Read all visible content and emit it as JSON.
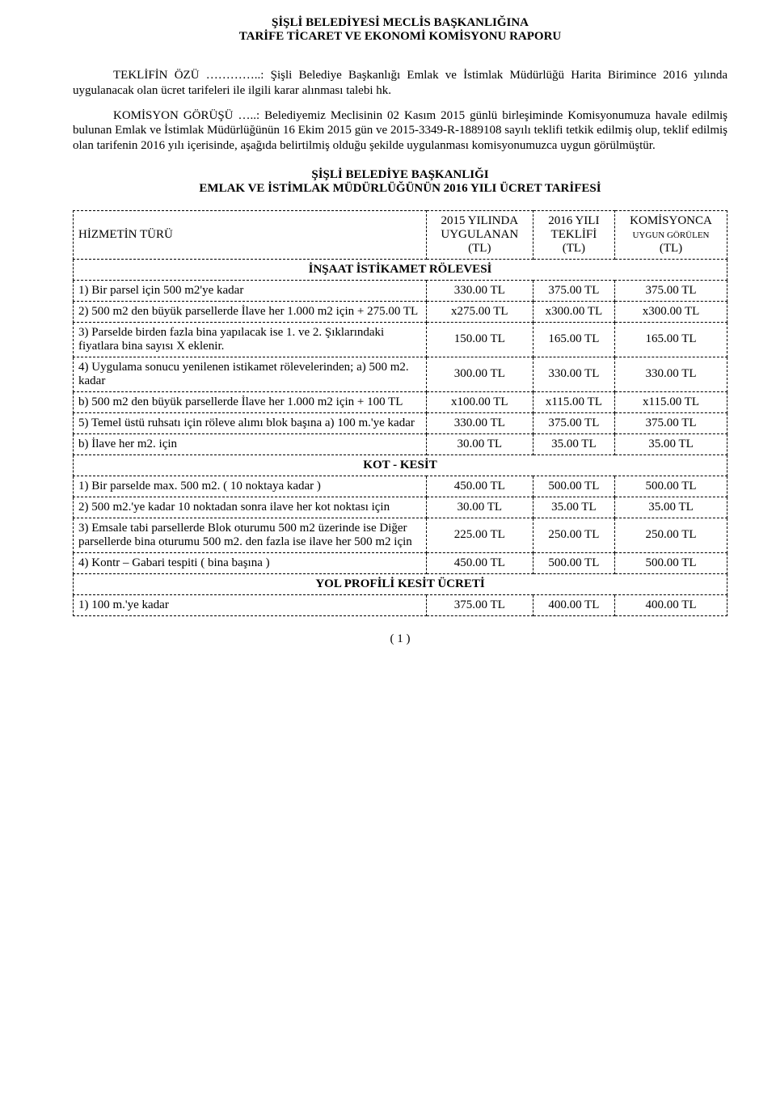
{
  "header": {
    "line1": "ŞİŞLİ BELEDİYESİ MECLİS BAŞKANLIĞINA",
    "line2": "TARİFE TİCARET VE EKONOMİ KOMİSYONU RAPORU"
  },
  "intro": {
    "teklif_label": "TEKLİFİN ÖZÜ …………..: ",
    "teklif_text": "Şişli Belediye Başkanlığı Emlak ve İstimlak Müdürlüğü Harita Birimince 2016 yılında uygulanacak olan ücret tarifeleri ile ilgili karar alınması talebi hk.",
    "komisyon_label": "KOMİSYON GÖRÜŞÜ …..: ",
    "komisyon_text": "Belediyemiz Meclisinin 02 Kasım 2015 günlü birleşiminde Komisyonumuza havale edilmiş bulunan Emlak ve İstimlak Müdürlüğünün 16 Ekim 2015 gün ve 2015-3349-R-1889108 sayılı teklifi tetkik edilmiş olup, teklif edilmiş olan tarifenin 2016 yılı içerisinde, aşağıda belirtilmiş olduğu şekilde uygulanması komisyonumuzca uygun görülmüştür."
  },
  "subheader": {
    "line1": "ŞİŞLİ BELEDİYE BAŞKANLIĞI",
    "line2": "EMLAK VE İSTİMLAK MÜDÜRLÜĞÜNÜN 2016 YILI ÜCRET TARİFESİ"
  },
  "columns": {
    "service": "HİZMETİN TÜRÜ",
    "c2015_a": "2015 YILINDA",
    "c2015_b": "UYGULANAN",
    "c2015_c": "(TL)",
    "c2016_a": "2016 YILI",
    "c2016_b": "TEKLİFİ",
    "c2016_c": "(TL)",
    "ckom_a": "KOMİSYONCA",
    "ckom_b": "UYGUN GÖRÜLEN",
    "ckom_c": "(TL)"
  },
  "sections": {
    "s1": "İNŞAAT İSTİKAMET RÖLEVESİ",
    "s2": "KOT   -   KESİT",
    "s3": "YOL PROFİLİ KESİT ÜCRETİ"
  },
  "rows": {
    "r1": {
      "desc": "1) Bir parsel için 500 m2'ye kadar",
      "a": "330.00 TL",
      "b": "375.00 TL",
      "c": "375.00 TL"
    },
    "r2": {
      "desc": "2) 500 m2 den büyük parsellerde İlave her 1.000 m2 için + 275.00 TL",
      "a": "x275.00 TL",
      "b": "x300.00 TL",
      "c": "x300.00 TL"
    },
    "r3": {
      "desc": "3) Parselde birden fazla bina yapılacak ise 1. ve 2. Şıklarındaki fiyatlara bina sayısı X eklenir.",
      "a": "150.00 TL",
      "b": "165.00 TL",
      "c": "165.00 TL"
    },
    "r4": {
      "desc": "4) Uygulama sonucu yenilenen istikamet rölevelerinden; a) 500 m2. kadar",
      "a": "300.00 TL",
      "b": "330.00 TL",
      "c": "330.00 TL"
    },
    "r5": {
      "desc": "    b) 500 m2 den büyük parsellerde İlave her 1.000 m2 için + 100 TL",
      "a": "x100.00 TL",
      "b": "x115.00 TL",
      "c": "x115.00 TL"
    },
    "r6": {
      "desc": "5) Temel üstü ruhsatı için röleve alımı blok başına a) 100 m.'ye kadar",
      "a": "330.00 TL",
      "b": "375.00 TL",
      "c": "375.00 TL"
    },
    "r7": {
      "desc": "    b) İlave her m2. için",
      "a": "30.00 TL",
      "b": "35.00 TL",
      "c": "35.00 TL"
    },
    "r8": {
      "desc": "1) Bir parselde max. 500 m2. ( 10 noktaya kadar )",
      "a": "450.00 TL",
      "b": "500.00 TL",
      "c": "500.00 TL"
    },
    "r9": {
      "desc": "2) 500 m2.'ye kadar 10 noktadan sonra ilave her kot noktası için",
      "a": "30.00 TL",
      "b": "35.00 TL",
      "c": "35.00 TL"
    },
    "r10": {
      "desc": "3) Emsale tabi parsellerde Blok oturumu 500 m2 üzerinde ise Diğer parsellerde bina oturumu 500 m2. den fazla ise ilave her 500 m2 için",
      "a": "225.00 TL",
      "b": "250.00 TL",
      "c": "250.00 TL"
    },
    "r11": {
      "desc": "4) Kontr – Gabari tespiti ( bina başına )",
      "a": "450.00 TL",
      "b": "500.00 TL",
      "c": "500.00 TL"
    },
    "r12": {
      "desc": "1) 100 m.'ye kadar",
      "a": "375.00 TL",
      "b": "400.00 TL",
      "c": "400.00 TL"
    }
  },
  "page_number": "( 1 )"
}
